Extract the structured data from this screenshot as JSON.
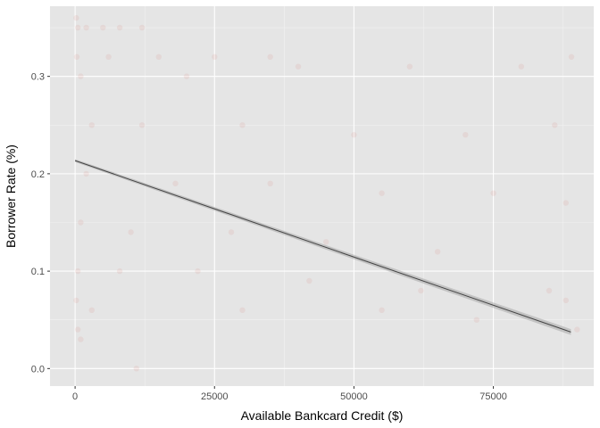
{
  "chart_data": {
    "type": "scatter",
    "title": "",
    "xlabel": "Available Bankcard Credit ($)",
    "ylabel": "Borrower Rate (%)",
    "xlim": [
      -4500,
      93000
    ],
    "ylim": [
      -0.018,
      0.372
    ],
    "x_ticks": [
      0,
      25000,
      50000,
      75000
    ],
    "x_tick_labels": [
      "0",
      "25000",
      "50000",
      "75000"
    ],
    "y_ticks": [
      0.0,
      0.1,
      0.2,
      0.3
    ],
    "y_tick_labels": [
      "0.0",
      "0.1",
      "0.2",
      "0.3"
    ],
    "grid": true,
    "legend": "none",
    "panel_background": "#e5e5e5",
    "point_color": "#cc3322",
    "point_alpha": 0.08,
    "line_color": "#444444",
    "band_color": "#999999",
    "trend_line": {
      "x": [
        0,
        88900
      ],
      "y": [
        0.2135,
        0.0375
      ],
      "ci_width": 0.0015
    },
    "series": [
      {
        "points": [
          [
            500,
            0.35
          ],
          [
            2000,
            0.35
          ],
          [
            5000,
            0.35
          ],
          [
            8000,
            0.35
          ],
          [
            12000,
            0.35
          ],
          [
            300,
            0.32
          ],
          [
            6000,
            0.32
          ],
          [
            15000,
            0.32
          ],
          [
            25000,
            0.32
          ],
          [
            35000,
            0.32
          ],
          [
            1000,
            0.3
          ],
          [
            20000,
            0.3
          ],
          [
            40000,
            0.31
          ],
          [
            60000,
            0.31
          ],
          [
            80000,
            0.31
          ],
          [
            3000,
            0.25
          ],
          [
            12000,
            0.25
          ],
          [
            30000,
            0.25
          ],
          [
            50000,
            0.24
          ],
          [
            70000,
            0.24
          ],
          [
            2000,
            0.2
          ],
          [
            18000,
            0.19
          ],
          [
            35000,
            0.19
          ],
          [
            55000,
            0.18
          ],
          [
            75000,
            0.18
          ],
          [
            1000,
            0.15
          ],
          [
            10000,
            0.14
          ],
          [
            28000,
            0.14
          ],
          [
            45000,
            0.13
          ],
          [
            65000,
            0.12
          ],
          [
            500,
            0.1
          ],
          [
            8000,
            0.1
          ],
          [
            22000,
            0.1
          ],
          [
            42000,
            0.09
          ],
          [
            62000,
            0.08
          ],
          [
            85000,
            0.08
          ],
          [
            88000,
            0.07
          ],
          [
            30000,
            0.06
          ],
          [
            55000,
            0.06
          ],
          [
            72000,
            0.05
          ],
          [
            200,
            0.07
          ],
          [
            3000,
            0.06
          ],
          [
            500,
            0.04
          ],
          [
            1000,
            0.03
          ],
          [
            11000,
            0.0
          ],
          [
            90000,
            0.04
          ],
          [
            88000,
            0.17
          ],
          [
            86000,
            0.25
          ],
          [
            89000,
            0.32
          ],
          [
            200,
            0.36
          ]
        ]
      }
    ]
  }
}
